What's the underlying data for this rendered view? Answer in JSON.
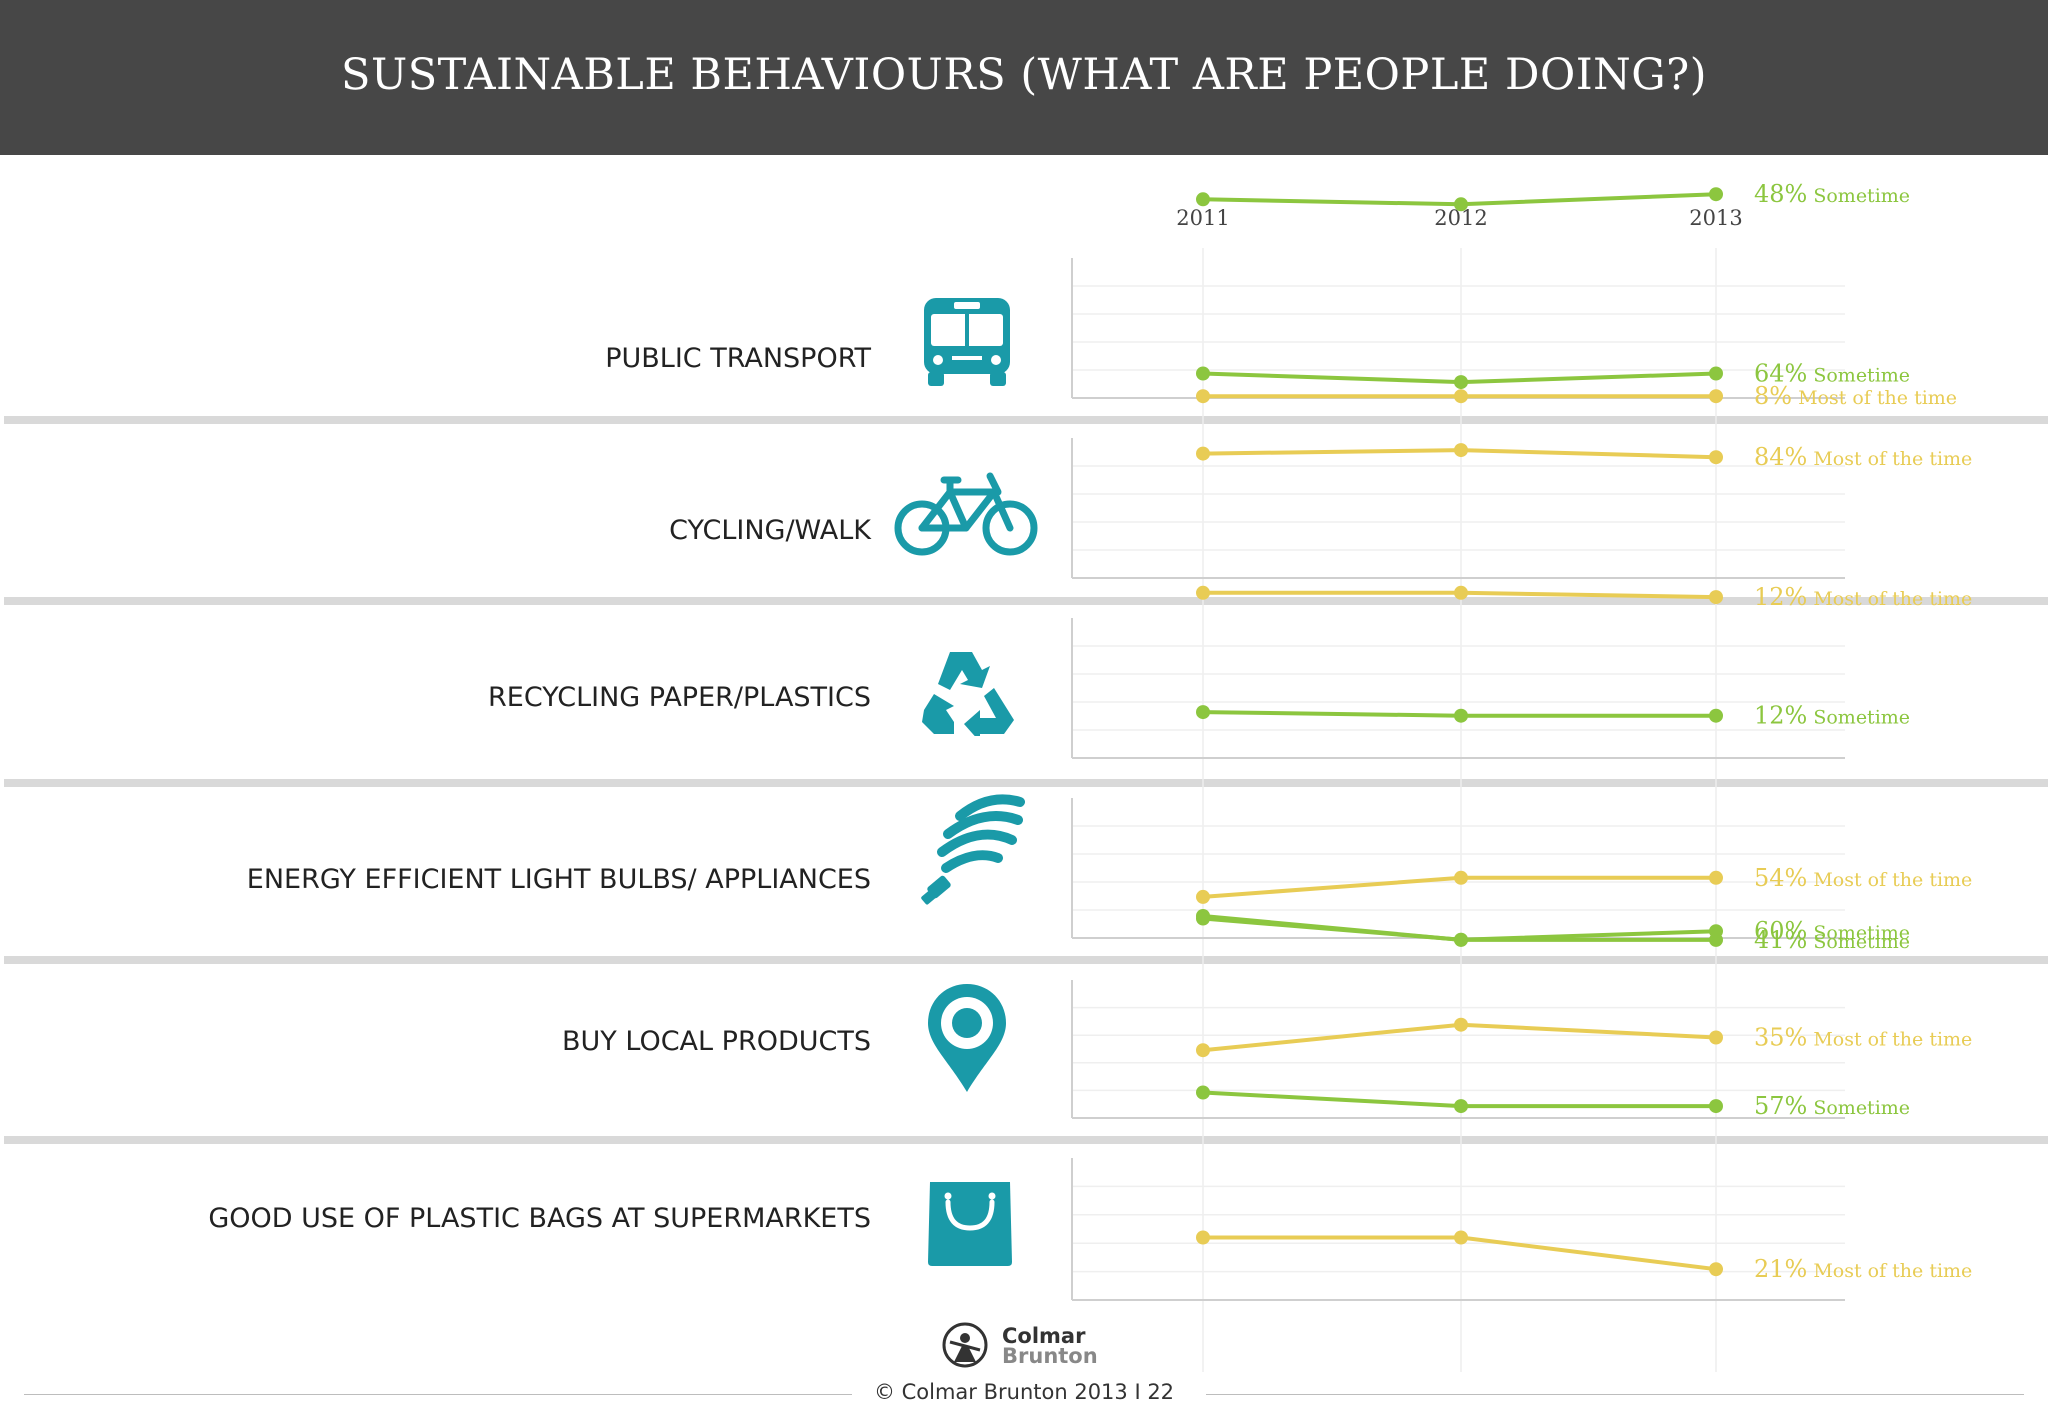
{
  "header": {
    "title": "SUSTAINABLE BEHAVIOURS (WHAT ARE PEOPLE DOING?)"
  },
  "colors": {
    "sometime": "#8cc63f",
    "most": "#e8cc55",
    "icon": "#1a9aa8",
    "header_bg": "#474747"
  },
  "chart_data": {
    "type": "line",
    "x": [
      "2011",
      "2012",
      "2013"
    ],
    "rows": [
      {
        "label": "PUBLIC TRANSPORT",
        "icon": "bus-icon",
        "series": [
          {
            "name": "Sometime",
            "values": [
              47,
              46,
              48
            ],
            "end_label": "48%",
            "end_text": "Sometime"
          },
          {
            "name": "Most of the time",
            "values": [
              8,
              8,
              8
            ],
            "end_label": "8%",
            "end_text": "Most of the time"
          }
        ]
      },
      {
        "label": "CYCLING/WALK",
        "icon": "bicycle-icon",
        "series": [
          {
            "name": "Sometime",
            "values": [
              64,
              62,
              64
            ],
            "end_label": "64%",
            "end_text": "Sometime"
          },
          {
            "name": "Most of the time",
            "values": [
              13,
              13,
              12
            ],
            "end_label": "12%",
            "end_text": "Most of the time"
          }
        ]
      },
      {
        "label": "RECYCLING PAPER/PLASTICS",
        "icon": "recycle-icon",
        "series": [
          {
            "name": "Most of the time",
            "values": [
              85,
              86,
              84
            ],
            "end_label": "84%",
            "end_text": "Most of the time"
          },
          {
            "name": "Sometime",
            "values": [
              13,
              12,
              12
            ],
            "end_label": "12%",
            "end_text": "Sometime"
          }
        ]
      },
      {
        "label": "ENERGY EFFICIENT LIGHT BULBS/ APPLIANCES",
        "icon": "light-bulb-icon",
        "series": [
          {
            "name": "Most of the time",
            "values": [
              50,
              54,
              54
            ],
            "end_label": "54%",
            "end_text": "Most of the time"
          },
          {
            "name": "Sometime",
            "values": [
              46,
              41,
              41
            ],
            "end_label": "41%",
            "end_text": "Sometime"
          }
        ]
      },
      {
        "label": "BUY LOCAL PRODUCTS",
        "icon": "location-pin-icon",
        "series": [
          {
            "name": "Sometime",
            "values": [
              63,
              58,
              60
            ],
            "end_label": "60%",
            "end_text": "Sometime"
          },
          {
            "name": "Most of the time",
            "values": [
              32,
              38,
              35
            ],
            "end_label": "35%",
            "end_text": "Most of the time"
          }
        ]
      },
      {
        "label": "GOOD USE OF PLASTIC BAGS AT SUPERMARKETS",
        "icon": "shopping-bag-icon",
        "series": [
          {
            "name": "Sometime",
            "values": [
              60,
              57,
              57
            ],
            "end_label": "57%",
            "end_text": "Sometime"
          },
          {
            "name": "Most of the time",
            "values": [
              28,
              28,
              21
            ],
            "end_label": "21%",
            "end_text": "Most of the time"
          }
        ]
      }
    ]
  },
  "footer": {
    "logo_line1": "Colmar",
    "logo_line2": "Brunton",
    "text": "© Colmar Brunton 2013  I  22"
  }
}
